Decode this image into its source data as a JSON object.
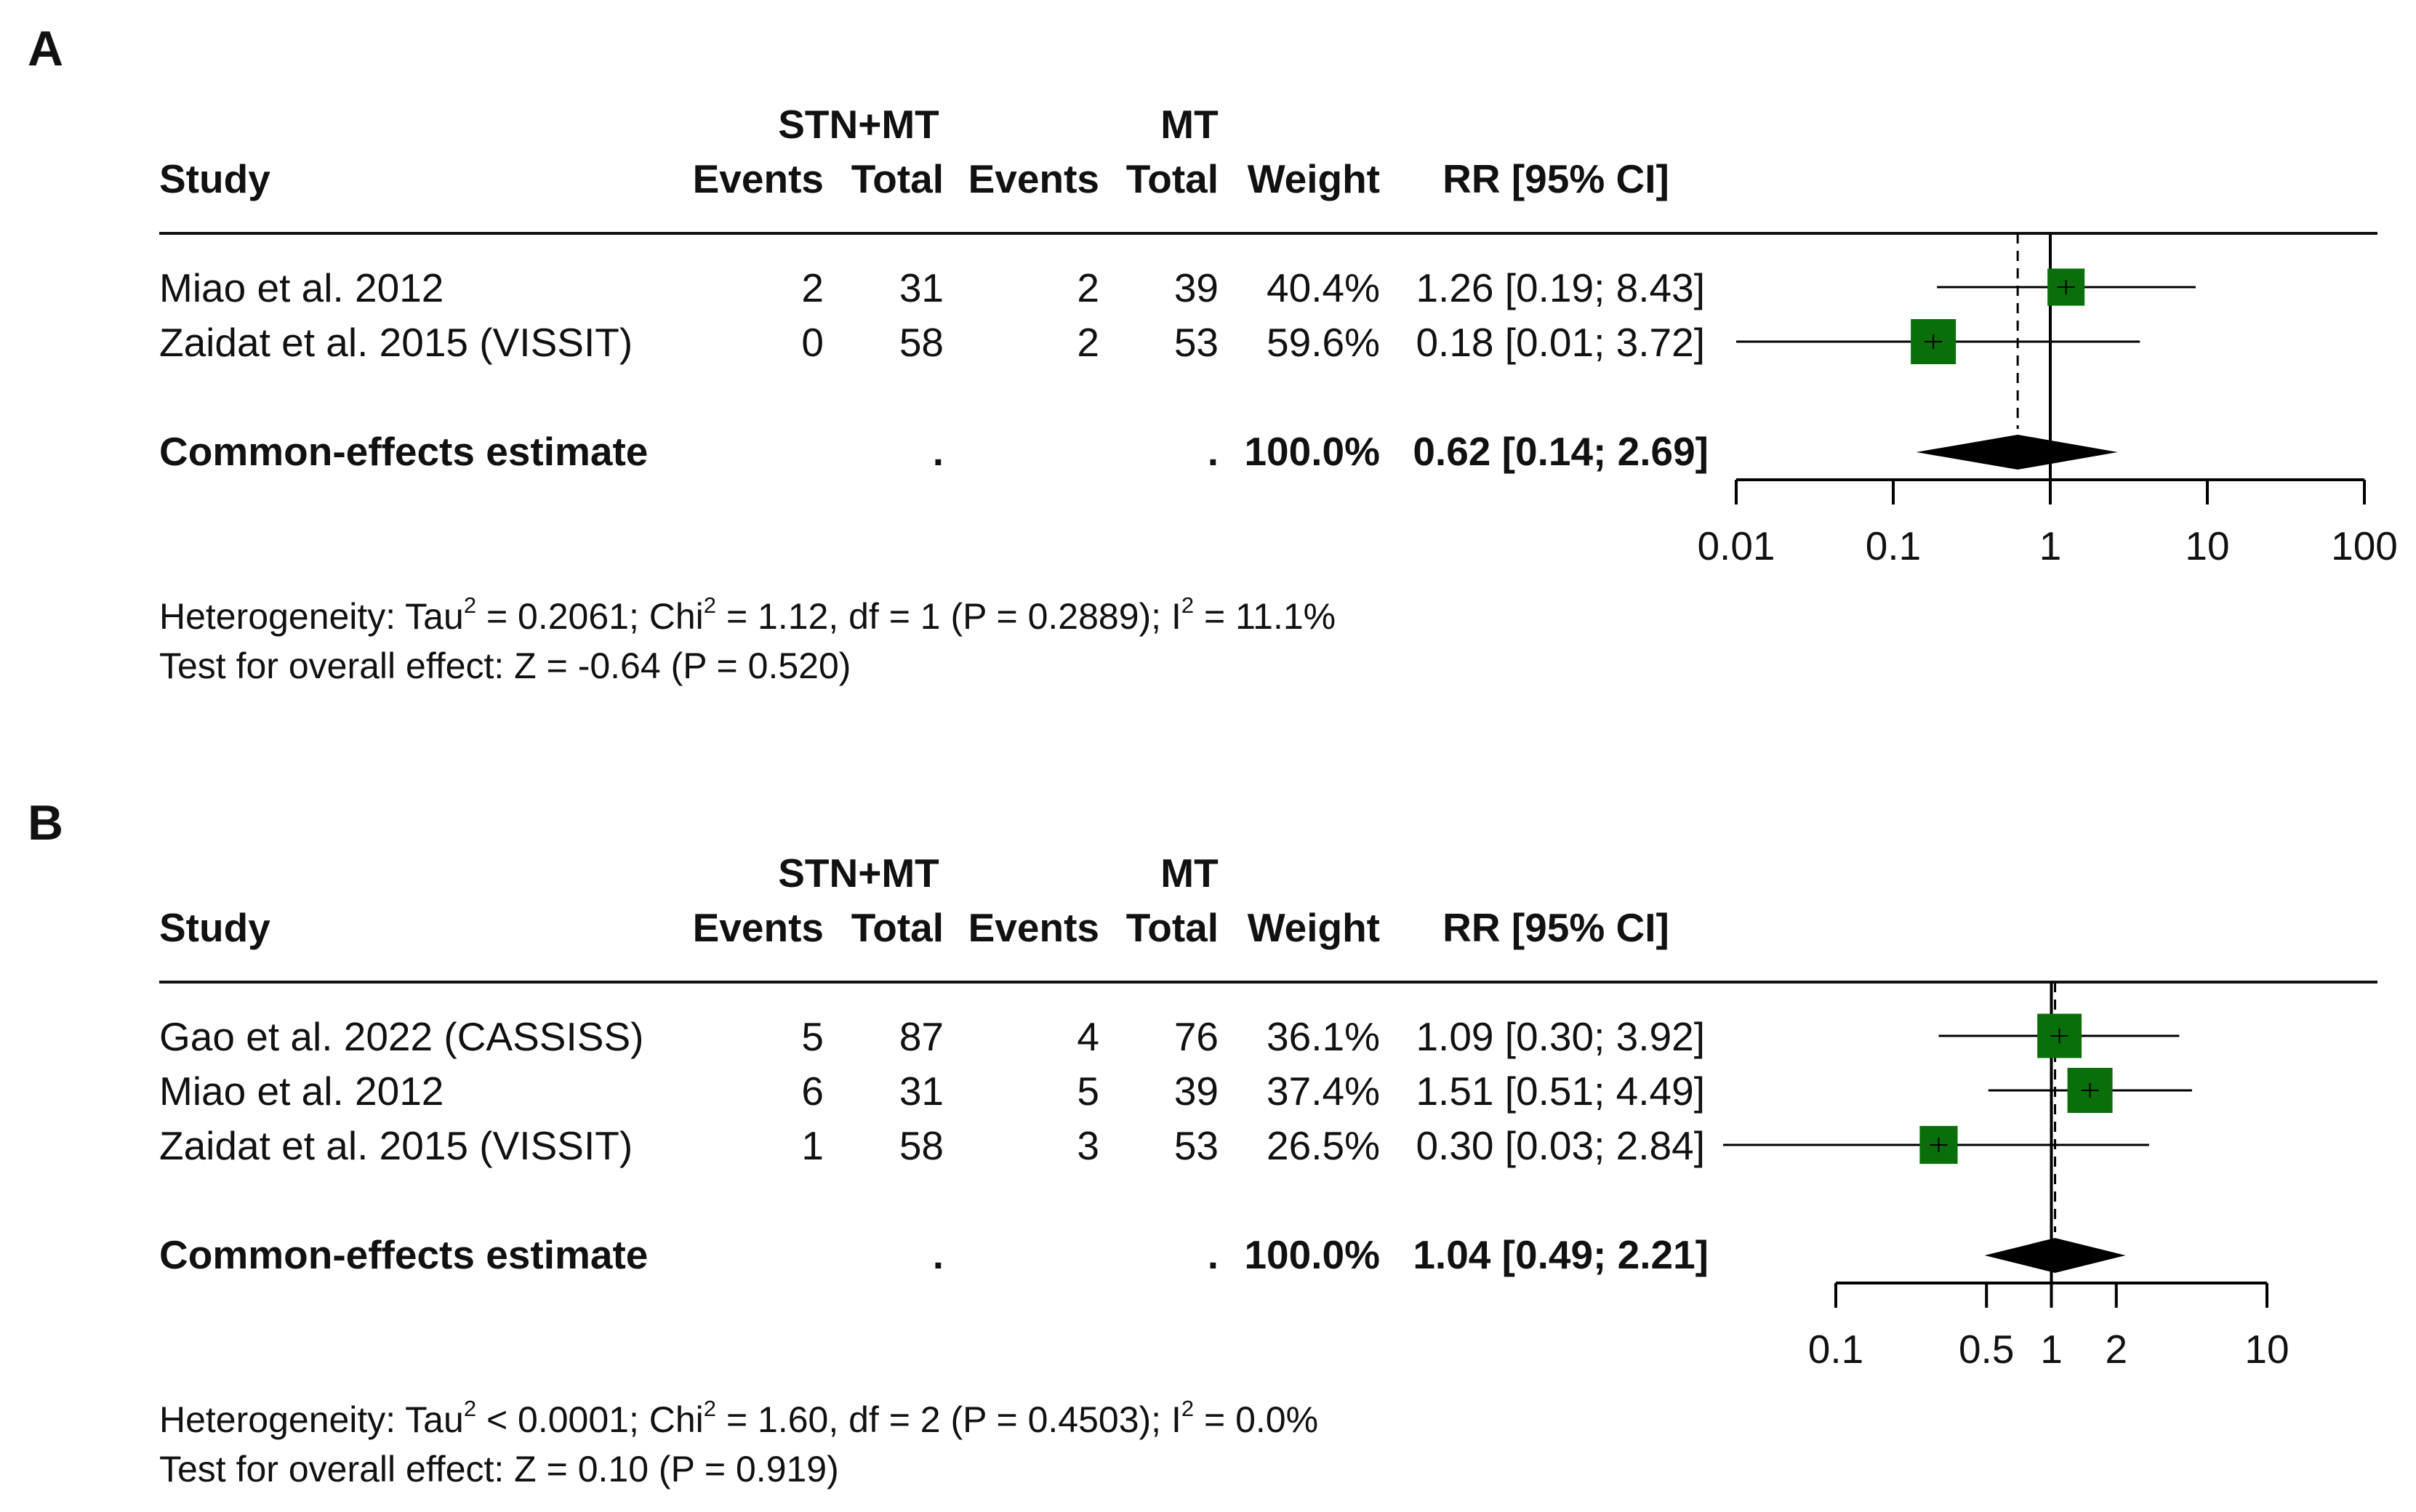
{
  "figure": {
    "panels": [
      {
        "label": "A",
        "headers": {
          "group1": "STN+MT",
          "group2": "MT",
          "study": "Study",
          "events1": "Events",
          "total1": "Total",
          "events2": "Events",
          "total2": "Total",
          "weight": "Weight",
          "effect": "RR [95% CI]"
        },
        "rows": [
          {
            "study": "Miao et al. 2012",
            "events1": "2",
            "total1": "31",
            "events2": "2",
            "total2": "39",
            "weight": "40.4%",
            "ci": "1.26 [0.19; 8.43]"
          },
          {
            "study": "Zaidat et al. 2015 (VISSIT)",
            "events1": "0",
            "total1": "58",
            "events2": "2",
            "total2": "53",
            "weight": "59.6%",
            "ci": "0.18 [0.01; 3.72]"
          }
        ],
        "pooled": {
          "label": "Common-effects estimate",
          "dot1": ".",
          "dot2": ".",
          "weight": "100.0%",
          "ci": "0.62 [0.14; 2.69]"
        },
        "heterogeneity": {
          "text1": "Heterogeneity: Tau",
          "text2": " = 0.2061; Chi",
          "text3": " = 1.12, df = 1 (P = 0.2889); I",
          "text4": " = 11.1%",
          "sup": "2"
        },
        "overall": "Test for overall effect: Z = -0.64 (P = 0.520)"
      },
      {
        "label": "B",
        "headers": {
          "group1": "STN+MT",
          "group2": "MT",
          "study": "Study",
          "events1": "Events",
          "total1": "Total",
          "events2": "Events",
          "total2": "Total",
          "weight": "Weight",
          "effect": "RR [95% CI]"
        },
        "rows": [
          {
            "study": "Gao et al. 2022 (CASSISS)",
            "events1": "5",
            "total1": "87",
            "events2": "4",
            "total2": "76",
            "weight": "36.1%",
            "ci": "1.09 [0.30; 3.92]"
          },
          {
            "study": "Miao et al. 2012",
            "events1": "6",
            "total1": "31",
            "events2": "5",
            "total2": "39",
            "weight": "37.4%",
            "ci": "1.51 [0.51; 4.49]"
          },
          {
            "study": "Zaidat et al. 2015 (VISSIT)",
            "events1": "1",
            "total1": "58",
            "events2": "3",
            "total2": "53",
            "weight": "26.5%",
            "ci": "0.30 [0.03; 2.84]"
          }
        ],
        "pooled": {
          "label": "Common-effects estimate",
          "dot1": ".",
          "dot2": ".",
          "weight": "100.0%",
          "ci": "1.04 [0.49; 2.21]"
        },
        "heterogeneity": {
          "text1": "Heterogeneity: Tau",
          "text2": " < 0.0001; Chi",
          "text3": " = 1.60, df = 2 (P = 0.4503); I",
          "text4": " = 0.0%",
          "sup": "2"
        },
        "overall": "Test for overall effect: Z = 0.10 (P = 0.919)"
      }
    ]
  },
  "colors": {
    "square": "#0a6e0a",
    "line": "#000000"
  },
  "chart_data": [
    {
      "type": "forest",
      "panel": "A",
      "scale": "log",
      "x_ticks": [
        0.01,
        0.1,
        1,
        10,
        100
      ],
      "x_tick_labels": [
        "0.01",
        "0.1",
        "1",
        "10",
        "100"
      ],
      "xlim": [
        0.01,
        100
      ],
      "null_line": 1,
      "studies": [
        {
          "name": "Miao et al. 2012",
          "rr": 1.26,
          "lower": 0.19,
          "upper": 8.43,
          "weight": 40.4
        },
        {
          "name": "Zaidat et al. 2015 (VISSIT)",
          "rr": 0.18,
          "lower": 0.01,
          "upper": 3.72,
          "weight": 59.6
        }
      ],
      "pooled": {
        "rr": 0.62,
        "lower": 0.14,
        "upper": 2.69
      }
    },
    {
      "type": "forest",
      "panel": "B",
      "scale": "log",
      "x_ticks": [
        0.1,
        0.5,
        1,
        2,
        10
      ],
      "x_tick_labels": [
        "0.1",
        "0.5",
        "1",
        "2",
        "10"
      ],
      "xlim": [
        0.1,
        10
      ],
      "null_line": 1,
      "studies": [
        {
          "name": "Gao et al. 2022 (CASSISS)",
          "rr": 1.09,
          "lower": 0.3,
          "upper": 3.92,
          "weight": 36.1
        },
        {
          "name": "Miao et al. 2012",
          "rr": 1.51,
          "lower": 0.51,
          "upper": 4.49,
          "weight": 37.4
        },
        {
          "name": "Zaidat et al. 2015 (VISSIT)",
          "rr": 0.3,
          "lower": 0.03,
          "upper": 2.84,
          "weight": 26.5
        }
      ],
      "pooled": {
        "rr": 1.04,
        "lower": 0.49,
        "upper": 2.21
      }
    }
  ]
}
